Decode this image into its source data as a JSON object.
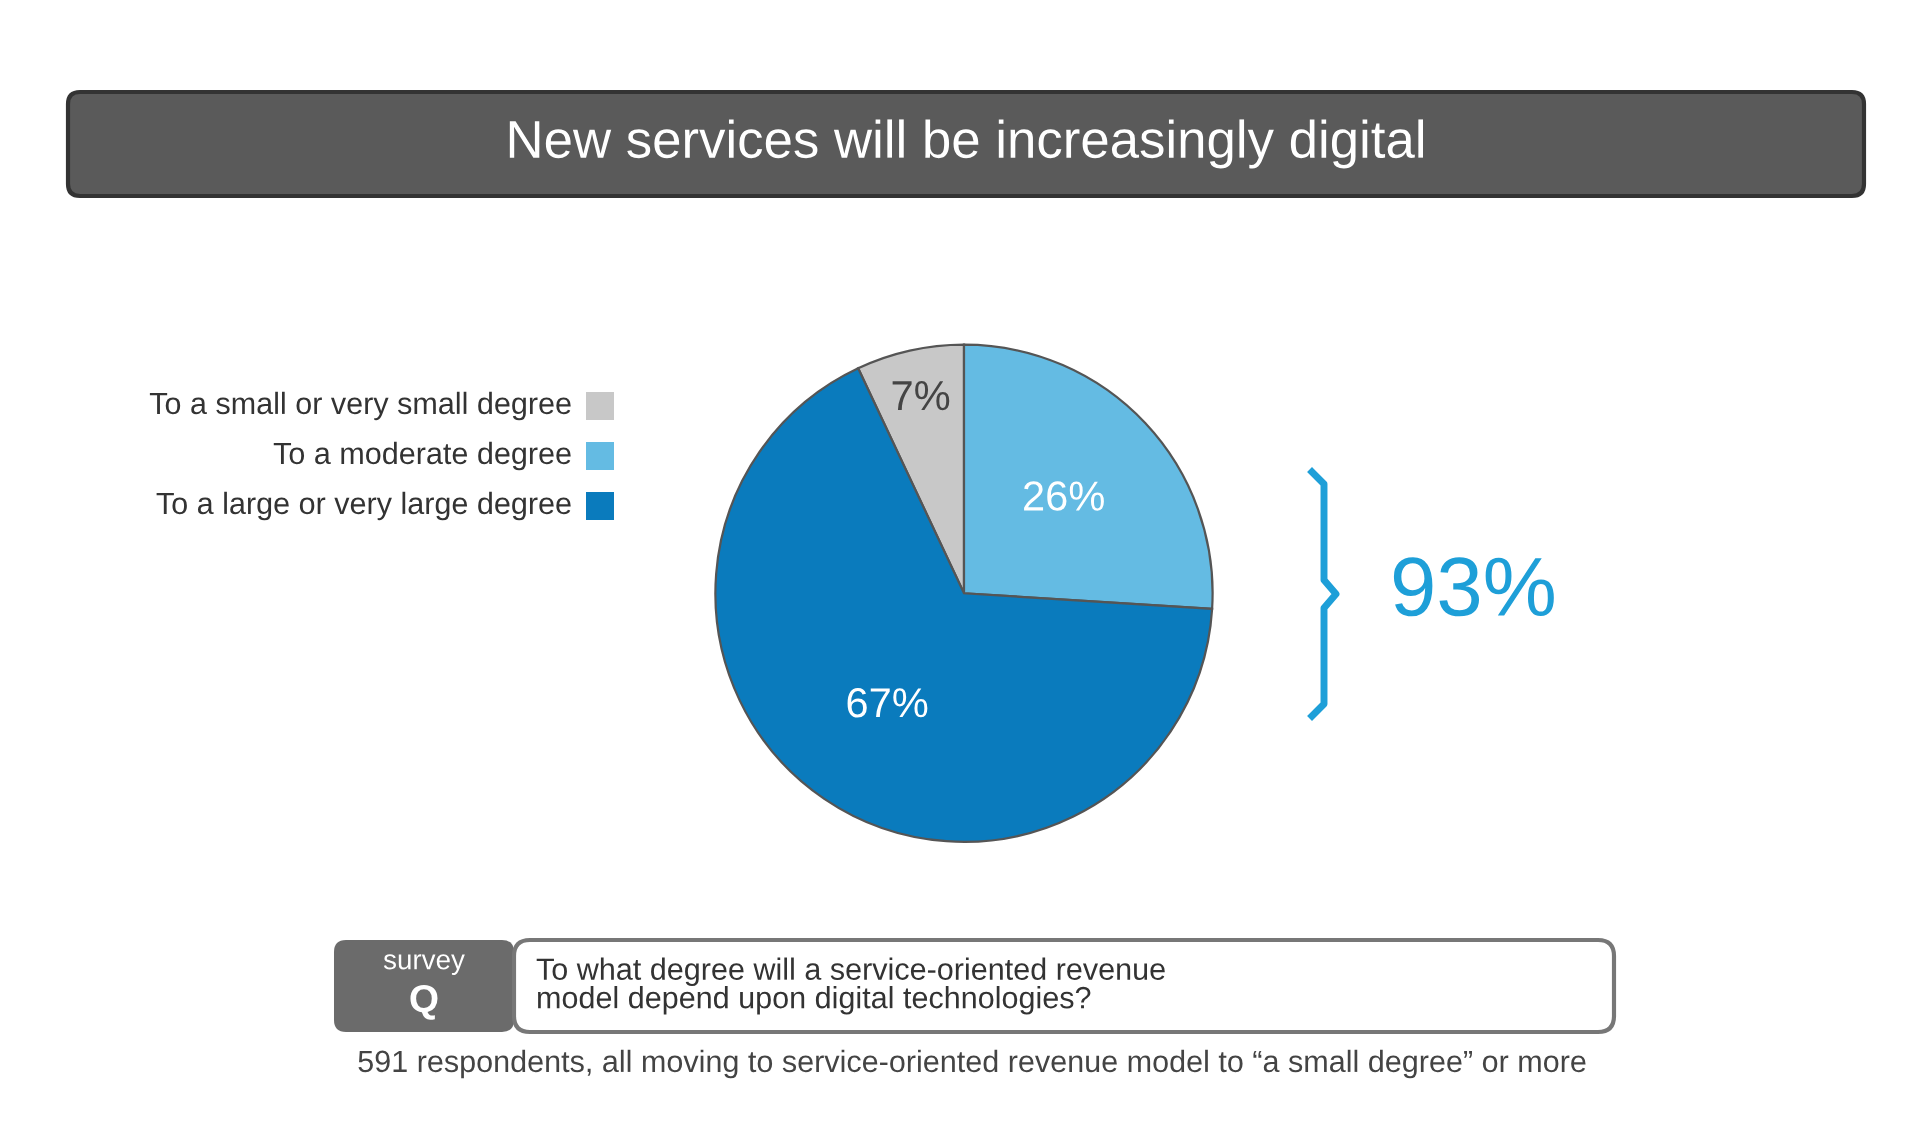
{
  "chart_data": {
    "type": "pie",
    "title": "New services will be increasingly digital",
    "categories": [
      "To a small or very small degree",
      "To a moderate degree",
      "To a large or very large degree"
    ],
    "values": [
      7,
      26,
      67
    ],
    "colors": [
      "#c8c8c8",
      "#64bbe3",
      "#0a7bbd"
    ],
    "value_labels": [
      "7%",
      "26%",
      "67%"
    ],
    "legend": "left",
    "annotations": [
      "93%",
      "survey",
      "Q",
      "To what degree will a service-oriented revenue\nmodel depend upon digital technologies?",
      "591 respondents, all moving to service-oriented revenue model to “a small degree” or more"
    ]
  }
}
